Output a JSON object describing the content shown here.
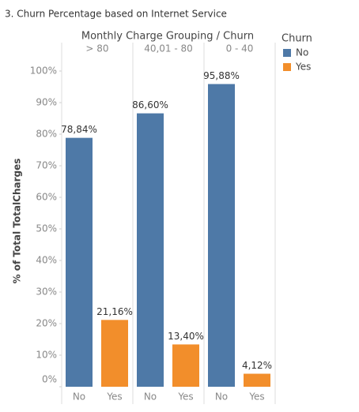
{
  "chart_data": {
    "type": "bar",
    "title": "3. Churn Percentage based on Internet Service",
    "header": "Monthly Charge Grouping / Churn",
    "categories": [
      "> 80",
      "40,01 - 80",
      "0 - 40"
    ],
    "y_label": "% of Total TotalCharges",
    "legend_title": "Churn",
    "series": [
      {
        "name": "No",
        "color": "#4e79a7",
        "values": [
          78.84,
          86.6,
          95.88
        ],
        "value_labels": [
          "78,84%",
          "86,60%",
          "95,88%"
        ]
      },
      {
        "name": "Yes",
        "color": "#f28e2b",
        "values": [
          21.16,
          13.4,
          4.12
        ],
        "value_labels": [
          "21,16%",
          "13,40%",
          "4,12%"
        ]
      }
    ],
    "ylim": [
      0,
      100
    ],
    "yticks": [
      {
        "value": 0,
        "label": "0%"
      },
      {
        "value": 10,
        "label": "10%"
      },
      {
        "value": 20,
        "label": "20%"
      },
      {
        "value": 30,
        "label": "30%"
      },
      {
        "value": 40,
        "label": "40%"
      },
      {
        "value": 50,
        "label": "50%"
      },
      {
        "value": 60,
        "label": "60%"
      },
      {
        "value": 70,
        "label": "70%"
      },
      {
        "value": 80,
        "label": "80%"
      },
      {
        "value": 90,
        "label": "90%"
      },
      {
        "value": 100,
        "label": "100%"
      }
    ],
    "legend": "right"
  }
}
